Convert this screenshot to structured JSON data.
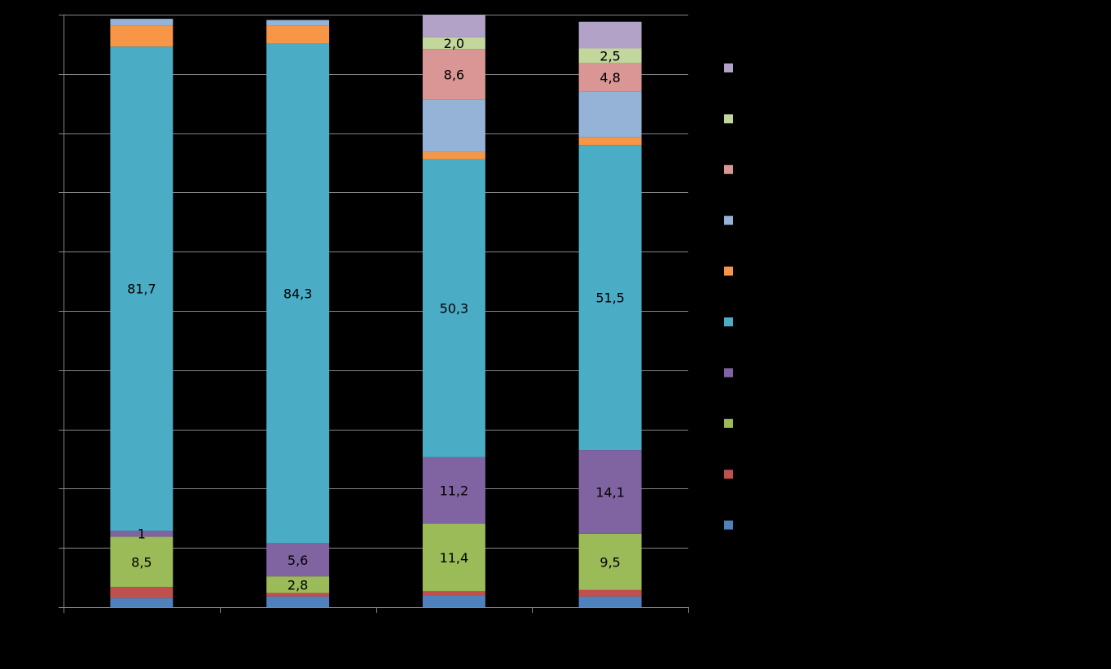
{
  "chart_data": {
    "type": "bar",
    "stacked": true,
    "categories": [
      "",
      "",
      "",
      ""
    ],
    "ylim": [
      0,
      100
    ],
    "grid": true,
    "legend_position": "right",
    "series": [
      {
        "color": "#4f81bd",
        "values": [
          1.5,
          1.8,
          2.0,
          1.8
        ],
        "labels": [
          "",
          "",
          "",
          ""
        ]
      },
      {
        "color": "#c0504d",
        "values": [
          1.9,
          0.6,
          0.7,
          1.1
        ],
        "labels": [
          "",
          "",
          "",
          ""
        ]
      },
      {
        "color": "#9bbb59",
        "values": [
          8.5,
          2.8,
          11.4,
          9.5
        ],
        "labels": [
          "8,5",
          "2,8",
          "11,4",
          "9,5"
        ]
      },
      {
        "color": "#8064a2",
        "values": [
          1.0,
          5.6,
          11.2,
          14.1
        ],
        "labels": [
          "1",
          "5,6",
          "11,2",
          "14,1"
        ]
      },
      {
        "color": "#4bacc6",
        "values": [
          81.7,
          84.3,
          50.3,
          51.5
        ],
        "labels": [
          "81,7",
          "84,3",
          "50,3",
          "51,5"
        ]
      },
      {
        "color": "#f79646",
        "values": [
          3.6,
          3.0,
          1.2,
          1.3
        ],
        "labels": [
          "",
          "",
          "",
          ""
        ]
      },
      {
        "color": "#95b3d7",
        "values": [
          1.1,
          1.0,
          8.8,
          7.7
        ],
        "labels": [
          "",
          "",
          "",
          ""
        ]
      },
      {
        "color": "#d99694",
        "values": [
          0.0,
          0.0,
          8.6,
          4.8
        ],
        "labels": [
          "",
          "",
          "8,6",
          "4,8"
        ]
      },
      {
        "color": "#c3d69b",
        "values": [
          0.0,
          0.0,
          2.0,
          2.5
        ],
        "labels": [
          "",
          "",
          "2,0",
          "2,5"
        ]
      },
      {
        "color": "#b2a2c7",
        "values": [
          0.0,
          0.0,
          3.8,
          4.5
        ],
        "labels": [
          "",
          "",
          "",
          ""
        ]
      }
    ]
  }
}
